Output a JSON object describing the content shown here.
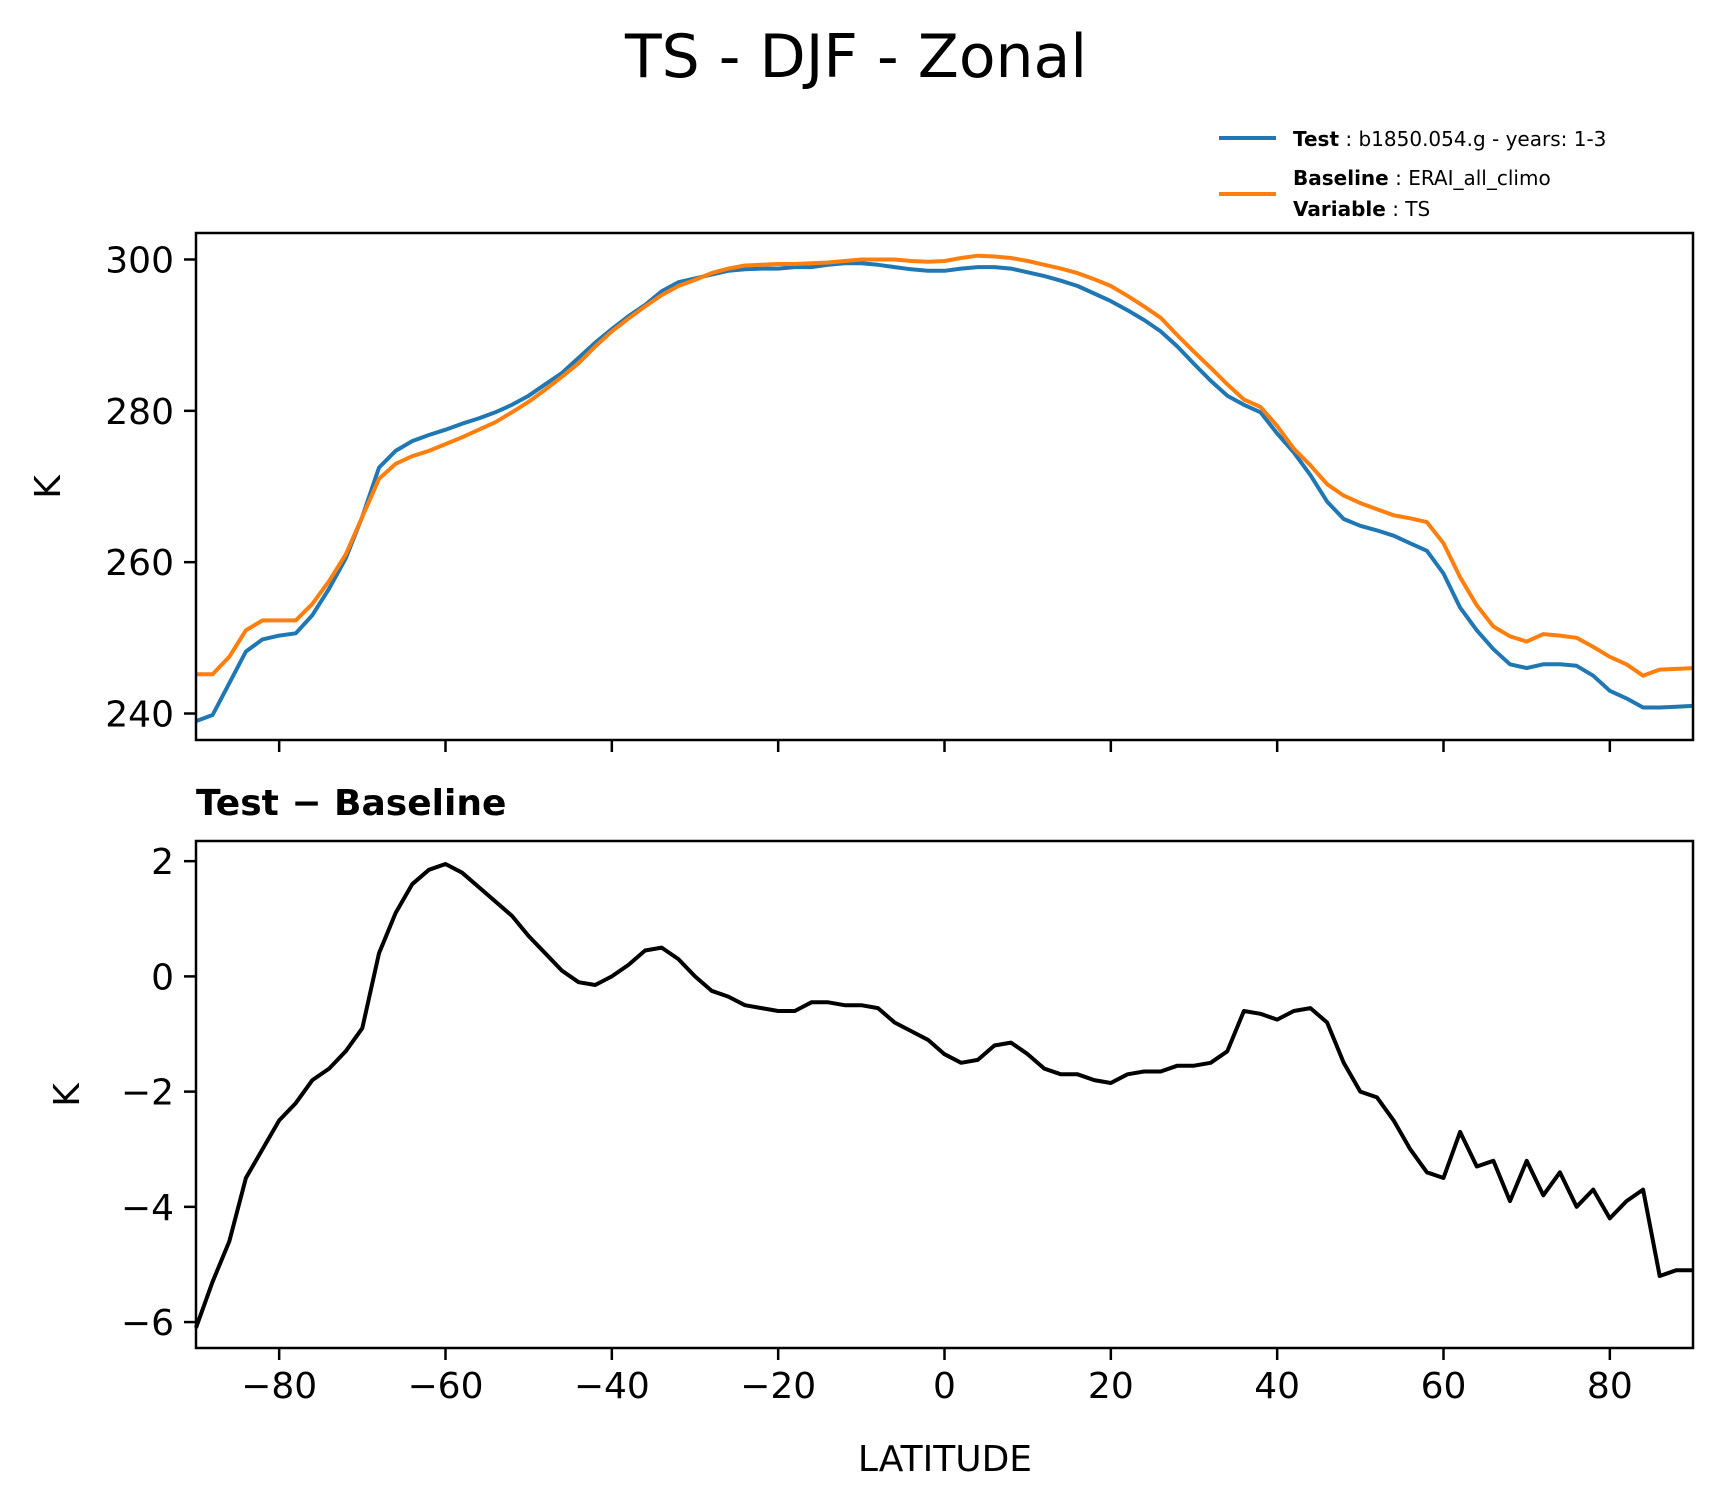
{
  "chart_data": [
    {
      "type": "line",
      "title": "TS - DJF - Zonal",
      "ylabel": "K",
      "xlabel": "",
      "xlim": [
        -90,
        90
      ],
      "ylim": [
        236.5,
        303.5
      ],
      "xticks": [
        -80,
        -60,
        -40,
        -20,
        0,
        20,
        40,
        60,
        80
      ],
      "yticks": [
        240,
        260,
        280,
        300
      ],
      "ytick_labels": [
        "240",
        "260",
        "280",
        "300"
      ],
      "grid": false,
      "legend_position": "above-right",
      "legend": [
        {
          "bold": "Test",
          "text": "b1850.054.g - years: 1-3",
          "color": "#1f77b4"
        },
        {
          "bold": "Baseline",
          "text": "ERAI_all_climo",
          "bold2": "Variable",
          "text2": "TS",
          "color": "#ff7f0e"
        }
      ],
      "x": [
        -90,
        -88,
        -86,
        -84,
        -82,
        -80,
        -78,
        -76,
        -74,
        -72,
        -70,
        -68,
        -66,
        -64,
        -62,
        -60,
        -58,
        -56,
        -54,
        -52,
        -50,
        -48,
        -46,
        -44,
        -42,
        -40,
        -38,
        -36,
        -34,
        -32,
        -30,
        -28,
        -26,
        -24,
        -22,
        -20,
        -18,
        -16,
        -14,
        -12,
        -10,
        -8,
        -6,
        -4,
        -2,
        0,
        2,
        4,
        6,
        8,
        10,
        12,
        14,
        16,
        18,
        20,
        22,
        24,
        26,
        28,
        30,
        32,
        34,
        36,
        38,
        40,
        42,
        44,
        46,
        48,
        50,
        52,
        54,
        56,
        58,
        60,
        62,
        64,
        66,
        68,
        70,
        72,
        74,
        76,
        78,
        80,
        82,
        84,
        86,
        88,
        90
      ],
      "series": [
        {
          "name": "Test",
          "color": "#1f77b4",
          "values": [
            239.0,
            239.8,
            244.0,
            248.2,
            249.8,
            250.3,
            250.6,
            253.0,
            256.5,
            260.5,
            266.0,
            272.5,
            274.7,
            276.0,
            276.8,
            277.5,
            278.3,
            279.0,
            279.8,
            280.8,
            282.0,
            283.5,
            285.0,
            287.0,
            289.0,
            290.8,
            292.5,
            294.0,
            295.8,
            297.0,
            297.5,
            298.0,
            298.5,
            298.7,
            298.8,
            298.8,
            299.0,
            299.0,
            299.3,
            299.5,
            299.5,
            299.3,
            299.0,
            298.7,
            298.5,
            298.5,
            298.8,
            299.0,
            299.0,
            298.8,
            298.3,
            297.8,
            297.2,
            296.5,
            295.5,
            294.5,
            293.3,
            292.0,
            290.5,
            288.5,
            286.2,
            284.0,
            282.0,
            280.8,
            279.8,
            277.0,
            274.5,
            271.5,
            268.0,
            265.7,
            264.8,
            264.2,
            263.5,
            262.5,
            261.5,
            258.5,
            254.0,
            251.0,
            248.5,
            246.5,
            246.0,
            246.5,
            246.5,
            246.3,
            245.0,
            243.0,
            242.0,
            240.8,
            240.8,
            240.9,
            241.0
          ]
        },
        {
          "name": "Baseline",
          "color": "#ff7f0e",
          "values": [
            245.2,
            245.2,
            247.5,
            251.0,
            252.3,
            252.3,
            252.3,
            254.5,
            257.5,
            261.0,
            266.0,
            271.0,
            273.0,
            274.0,
            274.7,
            275.6,
            276.5,
            277.5,
            278.5,
            279.8,
            281.2,
            282.8,
            284.5,
            286.3,
            288.5,
            290.5,
            292.2,
            293.8,
            295.3,
            296.5,
            297.3,
            298.2,
            298.8,
            299.2,
            299.3,
            299.4,
            299.4,
            299.5,
            299.6,
            299.8,
            300.0,
            300.0,
            300.0,
            299.8,
            299.7,
            299.8,
            300.2,
            300.5,
            300.4,
            300.2,
            299.8,
            299.3,
            298.8,
            298.2,
            297.4,
            296.5,
            295.2,
            293.8,
            292.3,
            290.0,
            287.8,
            285.7,
            283.5,
            281.5,
            280.5,
            278.0,
            275.0,
            272.8,
            270.3,
            268.8,
            267.8,
            267.0,
            266.2,
            265.8,
            265.3,
            262.5,
            258.0,
            254.3,
            251.5,
            250.2,
            249.5,
            250.5,
            250.3,
            250.0,
            248.8,
            247.5,
            246.5,
            245.0,
            245.8,
            245.9,
            246.0
          ]
        }
      ]
    },
    {
      "type": "line",
      "title": "Test − Baseline",
      "ylabel": "K",
      "xlabel": "LATITUDE",
      "xlim": [
        -90,
        90
      ],
      "ylim": [
        -6.45,
        2.35
      ],
      "xticks": [
        -80,
        -60,
        -40,
        -20,
        0,
        20,
        40,
        60,
        80
      ],
      "xtick_labels": [
        "−80",
        "−60",
        "−40",
        "−20",
        "0",
        "20",
        "40",
        "60",
        "80"
      ],
      "yticks": [
        -6,
        -4,
        -2,
        0,
        2
      ],
      "ytick_labels": [
        "−6",
        "−4",
        "−2",
        "0",
        "2"
      ],
      "grid": false,
      "x": [
        -90,
        -88,
        -86,
        -84,
        -82,
        -80,
        -78,
        -76,
        -74,
        -72,
        -70,
        -68,
        -66,
        -64,
        -62,
        -60,
        -58,
        -56,
        -54,
        -52,
        -50,
        -48,
        -46,
        -44,
        -42,
        -40,
        -38,
        -36,
        -34,
        -32,
        -30,
        -28,
        -26,
        -24,
        -22,
        -20,
        -18,
        -16,
        -14,
        -12,
        -10,
        -8,
        -6,
        -4,
        -2,
        0,
        2,
        4,
        6,
        8,
        10,
        12,
        14,
        16,
        18,
        20,
        22,
        24,
        26,
        28,
        30,
        32,
        34,
        36,
        38,
        40,
        42,
        44,
        46,
        48,
        50,
        52,
        54,
        56,
        58,
        60,
        62,
        64,
        66,
        68,
        70,
        72,
        74,
        76,
        78,
        80,
        82,
        84,
        86,
        88,
        90
      ],
      "series": [
        {
          "name": "",
          "color": "#000000",
          "values": [
            -6.1,
            -5.3,
            -4.6,
            -3.5,
            -3.0,
            -2.5,
            -2.2,
            -1.8,
            -1.6,
            -1.3,
            -0.9,
            0.4,
            1.1,
            1.6,
            1.85,
            1.95,
            1.8,
            1.55,
            1.3,
            1.05,
            0.7,
            0.4,
            0.1,
            -0.1,
            -0.15,
            0.0,
            0.2,
            0.45,
            0.5,
            0.3,
            0.0,
            -0.25,
            -0.35,
            -0.5,
            -0.55,
            -0.6,
            -0.6,
            -0.45,
            -0.45,
            -0.5,
            -0.5,
            -0.55,
            -0.8,
            -0.95,
            -1.1,
            -1.35,
            -1.5,
            -1.45,
            -1.2,
            -1.15,
            -1.35,
            -1.6,
            -1.7,
            -1.7,
            -1.8,
            -1.85,
            -1.7,
            -1.65,
            -1.65,
            -1.55,
            -1.55,
            -1.5,
            -1.3,
            -0.6,
            -0.65,
            -0.75,
            -0.6,
            -0.55,
            -0.8,
            -1.5,
            -2.0,
            -2.1,
            -2.5,
            -3.0,
            -3.4,
            -3.5,
            -2.7,
            -3.3,
            -3.2,
            -3.9,
            -3.2,
            -3.8,
            -3.4,
            -4.0,
            -3.7,
            -4.2,
            -3.9,
            -3.7,
            -5.2,
            -5.1,
            -5.1
          ]
        }
      ]
    }
  ]
}
